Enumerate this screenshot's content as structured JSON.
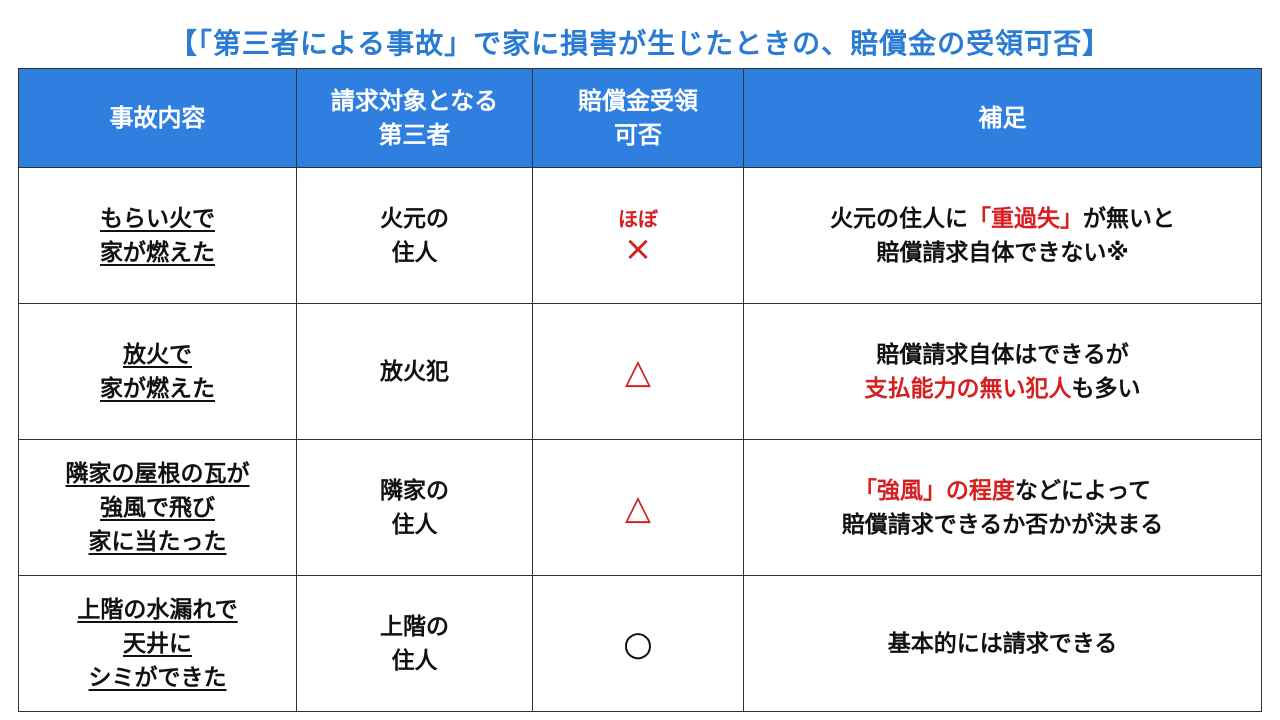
{
  "title": "【「第三者による事故」で家に損害が生じたときの、賠償金の受領可否】",
  "header": {
    "col1": "事故内容",
    "col2": [
      "請求対象となる",
      "第三者"
    ],
    "col3": [
      "賠償金受領",
      "可否"
    ],
    "col4": "補足"
  },
  "colors": {
    "header_bg": "#2f7fe0",
    "title": "#2a7bd4",
    "highlight": "#d61f1f"
  },
  "rows": [
    {
      "accident": [
        "もらい火で",
        "家が燃えた"
      ],
      "party": [
        "火元の",
        "住人"
      ],
      "result_prefix": "ほぼ",
      "result": "×",
      "note": [
        [
          {
            "t": "火元の住人に",
            "red": false
          },
          {
            "t": "「重過失」",
            "red": true
          },
          {
            "t": "が無いと",
            "red": false
          }
        ],
        [
          {
            "t": "賠償請求自体できない※",
            "red": false
          }
        ]
      ]
    },
    {
      "accident": [
        "放火で",
        "家が燃えた"
      ],
      "party": [
        "放火犯"
      ],
      "result_prefix": "",
      "result": "△",
      "note": [
        [
          {
            "t": "賠償請求自体はできるが",
            "red": false
          }
        ],
        [
          {
            "t": "支払能力の無い犯人",
            "red": true
          },
          {
            "t": "も多い",
            "red": false
          }
        ]
      ]
    },
    {
      "accident": [
        "隣家の屋根の瓦が",
        "強風で飛び",
        "家に当たった"
      ],
      "party": [
        "隣家の",
        "住人"
      ],
      "result_prefix": "",
      "result": "△",
      "note": [
        [
          {
            "t": "「強風」の程度",
            "red": true
          },
          {
            "t": "などによって",
            "red": false
          }
        ],
        [
          {
            "t": "賠償請求できるか否かが決まる",
            "red": false
          }
        ]
      ]
    },
    {
      "accident": [
        "上階の水漏れで",
        "天井に",
        "シミができた"
      ],
      "party": [
        "上階の",
        "住人"
      ],
      "result_prefix": "",
      "result": "○",
      "note": [
        [
          {
            "t": "基本的には請求できる",
            "red": false
          }
        ]
      ]
    }
  ]
}
